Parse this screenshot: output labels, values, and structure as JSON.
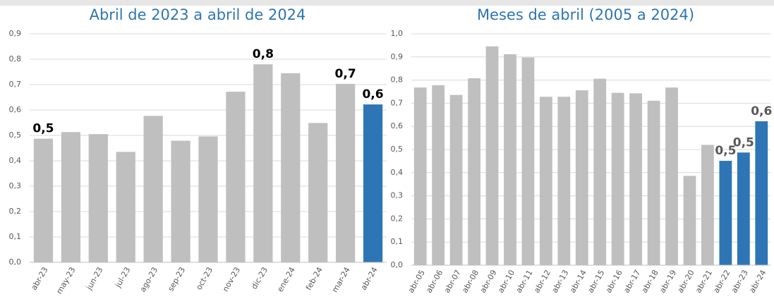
{
  "chart_data": [
    {
      "type": "bar",
      "title": "Abril de 2023 a abril de 2024",
      "categories": [
        "abr-23",
        "may-23",
        "jun-23",
        "jul-23",
        "ago-23",
        "sep-23",
        "oct-23",
        "nov-23",
        "dic-23",
        "ene-24",
        "feb-24",
        "mar-24",
        "abr-24"
      ],
      "values": [
        0.487,
        0.513,
        0.505,
        0.435,
        0.577,
        0.479,
        0.496,
        0.672,
        0.78,
        0.745,
        0.549,
        0.703,
        0.622
      ],
      "value_labels": [
        "0,5",
        null,
        null,
        null,
        null,
        null,
        null,
        null,
        "0,8",
        null,
        null,
        "0,7",
        "0,6"
      ],
      "colors": [
        "#bfbfbf",
        "#bfbfbf",
        "#bfbfbf",
        "#bfbfbf",
        "#bfbfbf",
        "#bfbfbf",
        "#bfbfbf",
        "#bfbfbf",
        "#bfbfbf",
        "#bfbfbf",
        "#bfbfbf",
        "#bfbfbf",
        "#2e75b6"
      ],
      "ylim": [
        0,
        0.9
      ],
      "yticks": [
        {
          "value": 0,
          "label": "0,0"
        },
        {
          "value": 0.1,
          "label": "0,1"
        },
        {
          "value": 0.2,
          "label": "0,2"
        },
        {
          "value": 0.3,
          "label": "0,3"
        },
        {
          "value": 0.4,
          "label": "0,4"
        },
        {
          "value": 0.5,
          "label": "0,5"
        },
        {
          "value": 0.6,
          "label": "0,6"
        },
        {
          "value": 0.7,
          "label": "0,7"
        },
        {
          "value": 0.8,
          "label": "0,8"
        },
        {
          "value": 0.9,
          "label": "0,9"
        }
      ],
      "grid": true
    },
    {
      "type": "bar",
      "title": "Meses de abril (2005 a 2024)",
      "categories": [
        "abr-05",
        "abr-06",
        "abr-07",
        "abr-08",
        "abr-09",
        "abr-10",
        "abr-11",
        "abr-12",
        "abr-13",
        "abr-14",
        "abr-15",
        "abr-16",
        "abr-17",
        "abr-18",
        "abr-19",
        "abr-20",
        "abr-21",
        "abr-22",
        "abr-23",
        "abr-24"
      ],
      "values": [
        0.768,
        0.778,
        0.736,
        0.808,
        0.946,
        0.912,
        0.898,
        0.728,
        0.728,
        0.756,
        0.806,
        0.745,
        0.743,
        0.711,
        0.768,
        0.386,
        0.52,
        0.451,
        0.487,
        0.622
      ],
      "value_labels": [
        null,
        null,
        null,
        null,
        null,
        null,
        null,
        null,
        null,
        null,
        null,
        null,
        null,
        null,
        null,
        null,
        null,
        "0,5",
        "0,5",
        "0,6"
      ],
      "colors": [
        "#bfbfbf",
        "#bfbfbf",
        "#bfbfbf",
        "#bfbfbf",
        "#bfbfbf",
        "#bfbfbf",
        "#bfbfbf",
        "#bfbfbf",
        "#bfbfbf",
        "#bfbfbf",
        "#bfbfbf",
        "#bfbfbf",
        "#bfbfbf",
        "#bfbfbf",
        "#bfbfbf",
        "#bfbfbf",
        "#bfbfbf",
        "#2e75b6",
        "#2e75b6",
        "#2e75b6"
      ],
      "ylim": [
        0,
        1.0
      ],
      "yticks": [
        {
          "value": 0,
          "label": "0,0"
        },
        {
          "value": 0.1,
          "label": "0,1"
        },
        {
          "value": 0.2,
          "label": "0,2"
        },
        {
          "value": 0.3,
          "label": "0,3"
        },
        {
          "value": 0.4,
          "label": "0,4"
        },
        {
          "value": 0.5,
          "label": "0,5"
        },
        {
          "value": 0.6,
          "label": "0,6"
        },
        {
          "value": 0.7,
          "label": "0,7"
        },
        {
          "value": 0.8,
          "label": "0,8"
        },
        {
          "value": 0.9,
          "label": "0,9"
        },
        {
          "value": 1.0,
          "label": "1,0"
        }
      ],
      "grid": true
    }
  ]
}
